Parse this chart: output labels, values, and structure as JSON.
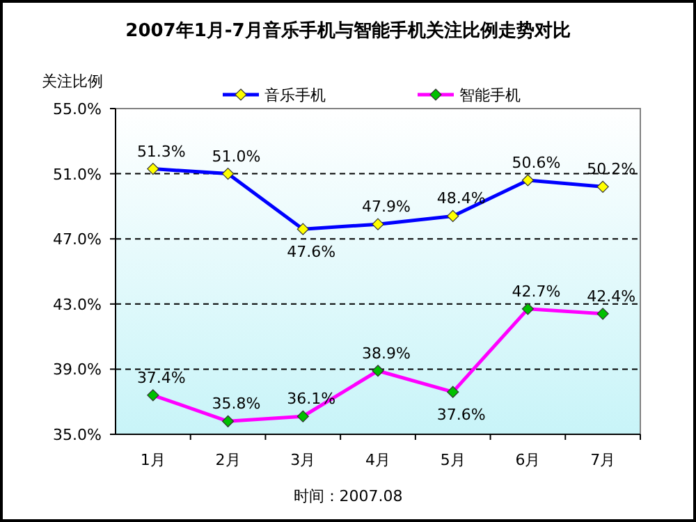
{
  "chart_data": {
    "type": "line",
    "title": "2007年1月-7月音乐手机与智能手机关注比例走势对比",
    "ylabel": "关注比例",
    "categories": [
      "1月",
      "2月",
      "3月",
      "4月",
      "5月",
      "6月",
      "7月"
    ],
    "series": [
      {
        "name": "音乐手机",
        "color": "#0000ff",
        "values": [
          51.3,
          51.0,
          47.6,
          47.9,
          48.4,
          50.6,
          50.2
        ],
        "value_labels": [
          "51.3%",
          "51.0%",
          "47.6%",
          "47.9%",
          "48.4%",
          "50.6%",
          "50.2%"
        ]
      },
      {
        "name": "智能手机",
        "color": "#ff00ff",
        "values": [
          37.4,
          35.8,
          36.1,
          38.9,
          37.6,
          42.7,
          42.4
        ],
        "value_labels": [
          "37.4%",
          "35.8%",
          "36.1%",
          "38.9%",
          "37.6%",
          "42.7%",
          "42.4%"
        ]
      }
    ],
    "ylim": [
      35,
      55
    ],
    "yticks": [
      {
        "value": 35,
        "label": "35.0%"
      },
      {
        "value": 39,
        "label": "39.0%"
      },
      {
        "value": 43,
        "label": "43.0%"
      },
      {
        "value": 47,
        "label": "47.0%"
      },
      {
        "value": 51,
        "label": "51.0%"
      },
      {
        "value": 55,
        "label": "55.0%"
      }
    ],
    "grid": "y",
    "legend": "top",
    "marker": "diamond",
    "annotations": [
      "时间：2007.08"
    ]
  }
}
